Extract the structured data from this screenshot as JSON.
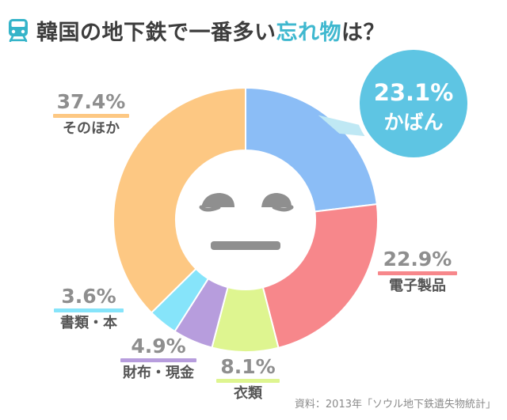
{
  "title": {
    "main": "韓国の地下鉄で一番多い",
    "accent": "忘れ物",
    "suffix": "は？",
    "icon": "train-icon",
    "accent_color": "#3fb8cf"
  },
  "face_icon": "worried-face-icon",
  "chart_data": {
    "type": "pie",
    "variant": "donut",
    "start": "12 o'clock, clockwise",
    "slices": [
      {
        "label": "かばん",
        "value": 23.1,
        "display": "23.1%",
        "color": "#8bbdf6"
      },
      {
        "label": "電子製品",
        "value": 22.9,
        "display": "22.9%",
        "color": "#f7878b"
      },
      {
        "label": "衣類",
        "value": 8.1,
        "display": "8.1%",
        "color": "#def590"
      },
      {
        "label": "財布・現金",
        "value": 4.9,
        "display": "4.9%",
        "color": "#b79ddd"
      },
      {
        "label": "書類・本",
        "value": 3.6,
        "display": "3.6%",
        "color": "#86e4fa"
      },
      {
        "label": "そのほか",
        "value": 37.4,
        "display": "37.4%",
        "color": "#fdc883"
      }
    ],
    "highlight": {
      "slice": "かばん",
      "bubble_color": "#5ec5e3",
      "tail_color": "#bfe8f4"
    }
  },
  "source": "資料：2013年「ソウル地下鉄遺失物統計」"
}
